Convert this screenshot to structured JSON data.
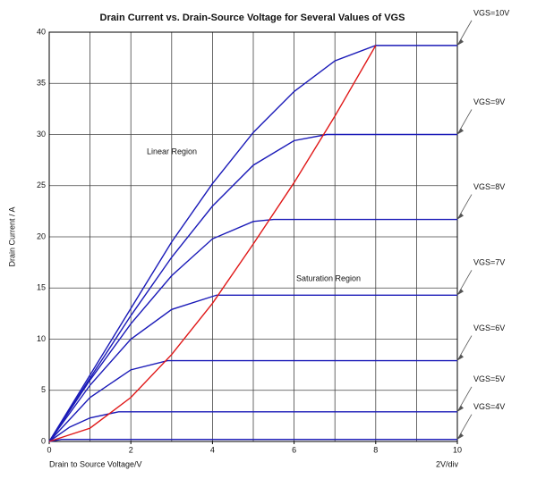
{
  "chart_data": {
    "type": "line",
    "title": "Drain Current vs. Drain-Source Voltage for Several Values of VGS",
    "x_label": "Drain to Source Voltage/V",
    "y_label": "Drain Current / A",
    "scale_note": "2V/div",
    "annotations": [
      "Linear Region",
      "Saturation Region"
    ],
    "xlim": [
      0,
      10
    ],
    "ylim": [
      0,
      40
    ],
    "xticks": [
      0,
      2,
      4,
      6,
      8,
      10
    ],
    "yticks": [
      0,
      5,
      10,
      15,
      20,
      25,
      30,
      35,
      40
    ],
    "xgrid": [
      1,
      2,
      3,
      4,
      5,
      6,
      7,
      8,
      9
    ],
    "grid": true,
    "series": [
      {
        "name": "VGS=10V",
        "color": "#1a1ab8",
        "x": [
          0,
          1,
          2,
          3,
          4,
          5,
          6,
          7,
          8,
          10
        ],
        "values": [
          0,
          6.5,
          13,
          19.5,
          25.2,
          30.2,
          34.2,
          37.2,
          38.7,
          38.7
        ]
      },
      {
        "name": "VGS=9V",
        "color": "#1a1ab8",
        "x": [
          0,
          1,
          2,
          3,
          4,
          5,
          6,
          6.8,
          10
        ],
        "values": [
          0,
          6.2,
          12.3,
          18,
          23,
          27,
          29.4,
          30,
          30
        ]
      },
      {
        "name": "VGS=8V",
        "color": "#1a1ab8",
        "x": [
          0,
          1,
          2,
          3,
          4,
          5,
          5.5,
          10
        ],
        "values": [
          0,
          6,
          11.5,
          16.2,
          19.8,
          21.5,
          21.7,
          21.7
        ]
      },
      {
        "name": "VGS=7V",
        "color": "#1a1ab8",
        "x": [
          0,
          1,
          2,
          3,
          4.1,
          10
        ],
        "values": [
          0,
          5.5,
          10,
          12.9,
          14.3,
          14.3
        ]
      },
      {
        "name": "VGS=6V",
        "color": "#1a1ab8",
        "x": [
          0,
          1,
          2,
          2.9,
          10
        ],
        "values": [
          0,
          4.3,
          7,
          7.9,
          7.9
        ]
      },
      {
        "name": "VGS=5V",
        "color": "#1a1ab8",
        "x": [
          0,
          0.5,
          1,
          1.7,
          10
        ],
        "values": [
          0,
          1.4,
          2.3,
          2.9,
          2.9
        ]
      },
      {
        "name": "VGS=4V",
        "color": "#1a1ab8",
        "x": [
          0,
          0.3,
          10
        ],
        "values": [
          0,
          0.2,
          0.2
        ]
      },
      {
        "color": "#e01818",
        "x": [
          0,
          1,
          2,
          3,
          4,
          5,
          6,
          7,
          8
        ],
        "values": [
          0,
          1.3,
          4.3,
          8.5,
          13.5,
          19.3,
          25.3,
          31.8,
          38.7
        ]
      }
    ]
  }
}
